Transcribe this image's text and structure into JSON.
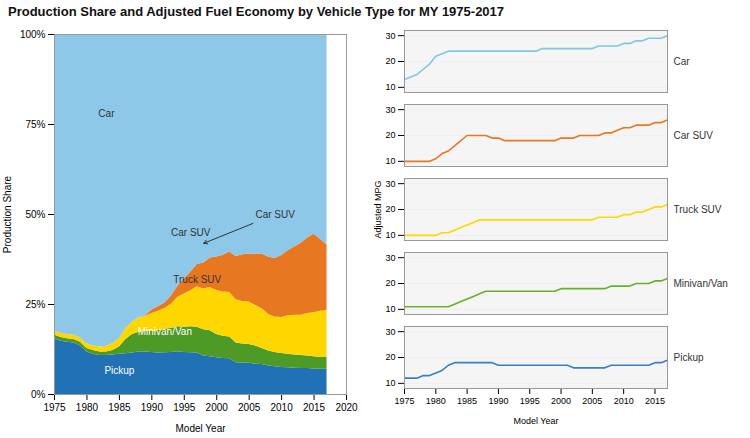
{
  "chart_data": [
    {
      "type": "area",
      "stacked": true,
      "title": "Production Share and Adjusted Fuel Economy by Vehicle Type for MY 1975-2017",
      "xlabel": "Model Year",
      "ylabel": "Production Share",
      "x": [
        1975,
        1976,
        1977,
        1978,
        1979,
        1980,
        1981,
        1982,
        1983,
        1984,
        1985,
        1986,
        1987,
        1988,
        1989,
        1990,
        1991,
        1992,
        1993,
        1994,
        1995,
        1996,
        1997,
        1998,
        1999,
        2000,
        2001,
        2002,
        2003,
        2004,
        2005,
        2006,
        2007,
        2008,
        2009,
        2010,
        2011,
        2012,
        2013,
        2014,
        2015,
        2016,
        2017
      ],
      "series": [
        {
          "name": "Pickup",
          "color": "#2171B5",
          "values": [
            0.155,
            0.148,
            0.145,
            0.143,
            0.135,
            0.118,
            0.112,
            0.108,
            0.108,
            0.11,
            0.112,
            0.113,
            0.115,
            0.118,
            0.118,
            0.117,
            0.115,
            0.116,
            0.117,
            0.119,
            0.117,
            0.116,
            0.115,
            0.107,
            0.105,
            0.102,
            0.1,
            0.099,
            0.088,
            0.087,
            0.087,
            0.084,
            0.083,
            0.079,
            0.077,
            0.075,
            0.074,
            0.073,
            0.072,
            0.072,
            0.071,
            0.07,
            0.07
          ]
        },
        {
          "name": "Minivan/Van",
          "color": "#4E9A27",
          "values": [
            0.01,
            0.01,
            0.01,
            0.01,
            0.01,
            0.01,
            0.01,
            0.01,
            0.01,
            0.012,
            0.02,
            0.04,
            0.052,
            0.055,
            0.057,
            0.058,
            0.063,
            0.065,
            0.066,
            0.069,
            0.07,
            0.072,
            0.072,
            0.073,
            0.072,
            0.065,
            0.062,
            0.061,
            0.055,
            0.053,
            0.052,
            0.051,
            0.045,
            0.042,
            0.04,
            0.039,
            0.038,
            0.037,
            0.036,
            0.035,
            0.034,
            0.033,
            0.033
          ]
        },
        {
          "name": "Truck SUV",
          "color": "#FFD700",
          "values": [
            0.012,
            0.012,
            0.012,
            0.012,
            0.012,
            0.013,
            0.013,
            0.014,
            0.015,
            0.02,
            0.023,
            0.03,
            0.033,
            0.04,
            0.042,
            0.05,
            0.053,
            0.058,
            0.068,
            0.082,
            0.092,
            0.1,
            0.112,
            0.113,
            0.12,
            0.122,
            0.123,
            0.123,
            0.12,
            0.118,
            0.118,
            0.112,
            0.11,
            0.101,
            0.098,
            0.1,
            0.107,
            0.11,
            0.112,
            0.118,
            0.122,
            0.128,
            0.13
          ]
        },
        {
          "name": "Car SUV",
          "color": "#E87722",
          "values": [
            0.0,
            0.0,
            0.0,
            0.0,
            0.0,
            0.0,
            0.0,
            0.0,
            0.0,
            0.0,
            0.0,
            0.0,
            0.0,
            0.0,
            0.001,
            0.01,
            0.013,
            0.015,
            0.022,
            0.031,
            0.042,
            0.052,
            0.062,
            0.072,
            0.082,
            0.093,
            0.102,
            0.113,
            0.12,
            0.13,
            0.133,
            0.143,
            0.152,
            0.16,
            0.163,
            0.172,
            0.18,
            0.19,
            0.2,
            0.21,
            0.218,
            0.2,
            0.182
          ]
        },
        {
          "name": "Car",
          "color": "#8DC8E8",
          "values": [
            0.823,
            0.83,
            0.833,
            0.835,
            0.843,
            0.859,
            0.865,
            0.868,
            0.867,
            0.858,
            0.845,
            0.817,
            0.8,
            0.787,
            0.782,
            0.765,
            0.756,
            0.746,
            0.727,
            0.699,
            0.679,
            0.66,
            0.639,
            0.635,
            0.621,
            0.618,
            0.613,
            0.604,
            0.617,
            0.612,
            0.61,
            0.61,
            0.61,
            0.618,
            0.622,
            0.614,
            0.601,
            0.59,
            0.58,
            0.565,
            0.555,
            0.569,
            0.585
          ]
        }
      ],
      "xlim": [
        1975,
        2020
      ],
      "xticks": [
        1975,
        1980,
        1985,
        1990,
        1995,
        2000,
        2005,
        2010,
        2015,
        2020
      ],
      "ylim": [
        0,
        1
      ],
      "yticks": [
        {
          "value": 0,
          "label": "0%"
        },
        {
          "value": 0.25,
          "label": "25%"
        },
        {
          "value": 0.5,
          "label": "50%"
        },
        {
          "value": 0.75,
          "label": "75%"
        },
        {
          "value": 1,
          "label": "100%"
        }
      ],
      "grid": false,
      "annotations": [
        {
          "text": "Car",
          "x": 1983,
          "y": 0.78,
          "color": "#333333"
        },
        {
          "text": "Car SUV",
          "x": 1996,
          "y": 0.45,
          "color": "#333333"
        },
        {
          "text": "Truck SUV",
          "x": 1997,
          "y": 0.32,
          "color": "#333333"
        },
        {
          "text": "Minivan/Van",
          "x": 1992,
          "y": 0.175,
          "color": "#ffffff"
        },
        {
          "text": "Pickup",
          "x": 1985,
          "y": 0.065,
          "color": "#ffffff"
        },
        {
          "text": "Car SUV",
          "x": 2009,
          "y": 0.5,
          "arrow_x": 1998,
          "arrow_y": 0.42,
          "color": "#333333"
        }
      ]
    },
    {
      "type": "line",
      "x": [
        1975,
        1976,
        1977,
        1978,
        1979,
        1980,
        1981,
        1982,
        1983,
        1984,
        1985,
        1986,
        1987,
        1988,
        1989,
        1990,
        1991,
        1992,
        1993,
        1994,
        1995,
        1996,
        1997,
        1998,
        1999,
        2000,
        2001,
        2002,
        2003,
        2004,
        2005,
        2006,
        2007,
        2008,
        2009,
        2010,
        2011,
        2012,
        2013,
        2014,
        2015,
        2016,
        2017
      ],
      "series": [
        {
          "name": "Car",
          "color": "#7EC8E3",
          "values": [
            13,
            14,
            15,
            17,
            19,
            22,
            23,
            24,
            24,
            24,
            24,
            24,
            24,
            24,
            24,
            24,
            24,
            24,
            24,
            24,
            24,
            24,
            25,
            25,
            25,
            25,
            25,
            25,
            25,
            25,
            25,
            26,
            26,
            26,
            26,
            27,
            27,
            28,
            28,
            29,
            29,
            29,
            30
          ]
        }
      ],
      "xlim": [
        1975,
        2017
      ],
      "ylim": [
        8,
        32
      ],
      "yticks": [
        10,
        20,
        30
      ],
      "grid": true,
      "tick_labels": "y"
    },
    {
      "type": "line",
      "x": [
        1975,
        1976,
        1977,
        1978,
        1979,
        1980,
        1981,
        1982,
        1983,
        1984,
        1985,
        1986,
        1987,
        1988,
        1989,
        1990,
        1991,
        1992,
        1993,
        1994,
        1995,
        1996,
        1997,
        1998,
        1999,
        2000,
        2001,
        2002,
        2003,
        2004,
        2005,
        2006,
        2007,
        2008,
        2009,
        2010,
        2011,
        2012,
        2013,
        2014,
        2015,
        2016,
        2017
      ],
      "series": [
        {
          "name": "Car SUV",
          "color": "#E87722",
          "values": [
            10,
            10,
            10,
            10,
            10,
            11,
            13,
            14,
            16,
            18,
            20,
            20,
            20,
            20,
            19,
            19,
            18,
            18,
            18,
            18,
            18,
            18,
            18,
            18,
            18,
            19,
            19,
            19,
            20,
            20,
            20,
            20,
            21,
            21,
            22,
            23,
            23,
            24,
            24,
            24,
            25,
            25,
            26
          ]
        }
      ],
      "xlim": [
        1975,
        2017
      ],
      "ylim": [
        8,
        32
      ],
      "yticks": [
        10,
        20,
        30
      ],
      "grid": true,
      "tick_labels": "y"
    },
    {
      "type": "line",
      "ylabel": "Adjusted MPG",
      "x": [
        1975,
        1976,
        1977,
        1978,
        1979,
        1980,
        1981,
        1982,
        1983,
        1984,
        1985,
        1986,
        1987,
        1988,
        1989,
        1990,
        1991,
        1992,
        1993,
        1994,
        1995,
        1996,
        1997,
        1998,
        1999,
        2000,
        2001,
        2002,
        2003,
        2004,
        2005,
        2006,
        2007,
        2008,
        2009,
        2010,
        2011,
        2012,
        2013,
        2014,
        2015,
        2016,
        2017
      ],
      "series": [
        {
          "name": "Truck SUV",
          "color": "#FFD700",
          "values": [
            10,
            10,
            10,
            10,
            10,
            10,
            11,
            11,
            12,
            13,
            14,
            15,
            16,
            16,
            16,
            16,
            16,
            16,
            16,
            16,
            16,
            16,
            16,
            16,
            16,
            16,
            16,
            16,
            16,
            16,
            16,
            17,
            17,
            17,
            17,
            18,
            18,
            19,
            19,
            20,
            21,
            21,
            22
          ]
        }
      ],
      "xlim": [
        1975,
        2017
      ],
      "ylim": [
        8,
        32
      ],
      "yticks": [
        10,
        20,
        30
      ],
      "grid": true,
      "tick_labels": "y"
    },
    {
      "type": "line",
      "x": [
        1975,
        1976,
        1977,
        1978,
        1979,
        1980,
        1981,
        1982,
        1983,
        1984,
        1985,
        1986,
        1987,
        1988,
        1989,
        1990,
        1991,
        1992,
        1993,
        1994,
        1995,
        1996,
        1997,
        1998,
        1999,
        2000,
        2001,
        2002,
        2003,
        2004,
        2005,
        2006,
        2007,
        2008,
        2009,
        2010,
        2011,
        2012,
        2013,
        2014,
        2015,
        2016,
        2017
      ],
      "series": [
        {
          "name": "Minivan/Van",
          "color": "#6AAF2E",
          "values": [
            11,
            11,
            11,
            11,
            11,
            11,
            11,
            11,
            12,
            13,
            14,
            15,
            16,
            17,
            17,
            17,
            17,
            17,
            17,
            17,
            17,
            17,
            17,
            17,
            17,
            18,
            18,
            18,
            18,
            18,
            18,
            18,
            18,
            19,
            19,
            19,
            19,
            20,
            20,
            20,
            21,
            21,
            22
          ]
        }
      ],
      "xlim": [
        1975,
        2017
      ],
      "ylim": [
        8,
        32
      ],
      "yticks": [
        10,
        20,
        30
      ],
      "grid": true,
      "tick_labels": "y"
    },
    {
      "type": "line",
      "xlabel": "Model Year",
      "x": [
        1975,
        1976,
        1977,
        1978,
        1979,
        1980,
        1981,
        1982,
        1983,
        1984,
        1985,
        1986,
        1987,
        1988,
        1989,
        1990,
        1991,
        1992,
        1993,
        1994,
        1995,
        1996,
        1997,
        1998,
        1999,
        2000,
        2001,
        2002,
        2003,
        2004,
        2005,
        2006,
        2007,
        2008,
        2009,
        2010,
        2011,
        2012,
        2013,
        2014,
        2015,
        2016,
        2017
      ],
      "series": [
        {
          "name": "Pickup",
          "color": "#3A7FC1",
          "values": [
            12,
            12,
            12,
            13,
            13,
            14,
            15,
            17,
            18,
            18,
            18,
            18,
            18,
            18,
            18,
            17,
            17,
            17,
            17,
            17,
            17,
            17,
            17,
            17,
            17,
            17,
            17,
            16,
            16,
            16,
            16,
            16,
            16,
            17,
            17,
            17,
            17,
            17,
            17,
            17,
            18,
            18,
            19
          ]
        }
      ],
      "xlim": [
        1975,
        2017
      ],
      "xticks": [
        1975,
        1980,
        1985,
        1990,
        1995,
        2000,
        2005,
        2010,
        2015
      ],
      "ylim": [
        8,
        32
      ],
      "yticks": [
        10,
        20,
        30
      ],
      "grid": true
    }
  ]
}
